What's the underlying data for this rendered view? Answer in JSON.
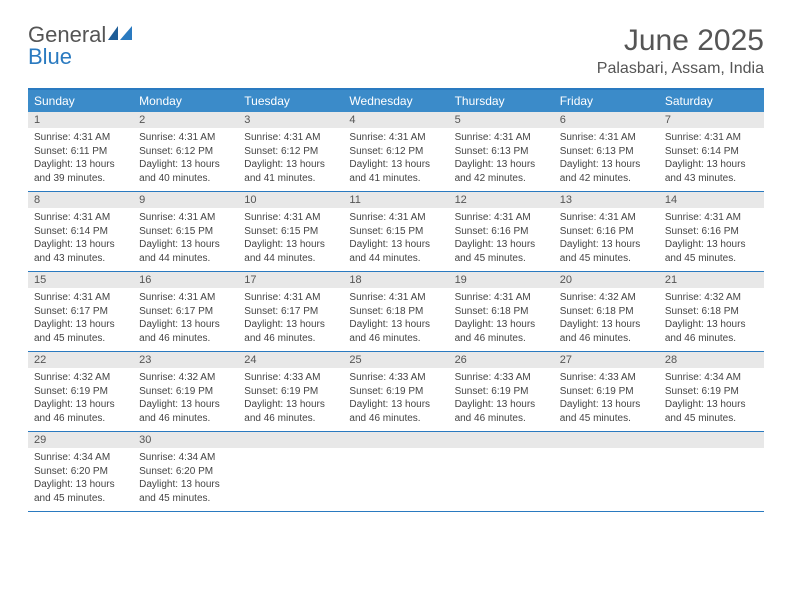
{
  "logo": {
    "text1": "General",
    "text2": "Blue"
  },
  "title": "June 2025",
  "location": "Palasbari, Assam, India",
  "colors": {
    "header_bg": "#3b8bc9",
    "border": "#2a7ac0",
    "daynum_bg": "#e8e8e8",
    "text_dark": "#555555",
    "text_body": "#444444",
    "white": "#ffffff"
  },
  "dayNames": [
    "Sunday",
    "Monday",
    "Tuesday",
    "Wednesday",
    "Thursday",
    "Friday",
    "Saturday"
  ],
  "weeks": [
    [
      {
        "num": "1",
        "sunrise": "Sunrise: 4:31 AM",
        "sunset": "Sunset: 6:11 PM",
        "day1": "Daylight: 13 hours",
        "day2": "and 39 minutes."
      },
      {
        "num": "2",
        "sunrise": "Sunrise: 4:31 AM",
        "sunset": "Sunset: 6:12 PM",
        "day1": "Daylight: 13 hours",
        "day2": "and 40 minutes."
      },
      {
        "num": "3",
        "sunrise": "Sunrise: 4:31 AM",
        "sunset": "Sunset: 6:12 PM",
        "day1": "Daylight: 13 hours",
        "day2": "and 41 minutes."
      },
      {
        "num": "4",
        "sunrise": "Sunrise: 4:31 AM",
        "sunset": "Sunset: 6:12 PM",
        "day1": "Daylight: 13 hours",
        "day2": "and 41 minutes."
      },
      {
        "num": "5",
        "sunrise": "Sunrise: 4:31 AM",
        "sunset": "Sunset: 6:13 PM",
        "day1": "Daylight: 13 hours",
        "day2": "and 42 minutes."
      },
      {
        "num": "6",
        "sunrise": "Sunrise: 4:31 AM",
        "sunset": "Sunset: 6:13 PM",
        "day1": "Daylight: 13 hours",
        "day2": "and 42 minutes."
      },
      {
        "num": "7",
        "sunrise": "Sunrise: 4:31 AM",
        "sunset": "Sunset: 6:14 PM",
        "day1": "Daylight: 13 hours",
        "day2": "and 43 minutes."
      }
    ],
    [
      {
        "num": "8",
        "sunrise": "Sunrise: 4:31 AM",
        "sunset": "Sunset: 6:14 PM",
        "day1": "Daylight: 13 hours",
        "day2": "and 43 minutes."
      },
      {
        "num": "9",
        "sunrise": "Sunrise: 4:31 AM",
        "sunset": "Sunset: 6:15 PM",
        "day1": "Daylight: 13 hours",
        "day2": "and 44 minutes."
      },
      {
        "num": "10",
        "sunrise": "Sunrise: 4:31 AM",
        "sunset": "Sunset: 6:15 PM",
        "day1": "Daylight: 13 hours",
        "day2": "and 44 minutes."
      },
      {
        "num": "11",
        "sunrise": "Sunrise: 4:31 AM",
        "sunset": "Sunset: 6:15 PM",
        "day1": "Daylight: 13 hours",
        "day2": "and 44 minutes."
      },
      {
        "num": "12",
        "sunrise": "Sunrise: 4:31 AM",
        "sunset": "Sunset: 6:16 PM",
        "day1": "Daylight: 13 hours",
        "day2": "and 45 minutes."
      },
      {
        "num": "13",
        "sunrise": "Sunrise: 4:31 AM",
        "sunset": "Sunset: 6:16 PM",
        "day1": "Daylight: 13 hours",
        "day2": "and 45 minutes."
      },
      {
        "num": "14",
        "sunrise": "Sunrise: 4:31 AM",
        "sunset": "Sunset: 6:16 PM",
        "day1": "Daylight: 13 hours",
        "day2": "and 45 minutes."
      }
    ],
    [
      {
        "num": "15",
        "sunrise": "Sunrise: 4:31 AM",
        "sunset": "Sunset: 6:17 PM",
        "day1": "Daylight: 13 hours",
        "day2": "and 45 minutes."
      },
      {
        "num": "16",
        "sunrise": "Sunrise: 4:31 AM",
        "sunset": "Sunset: 6:17 PM",
        "day1": "Daylight: 13 hours",
        "day2": "and 46 minutes."
      },
      {
        "num": "17",
        "sunrise": "Sunrise: 4:31 AM",
        "sunset": "Sunset: 6:17 PM",
        "day1": "Daylight: 13 hours",
        "day2": "and 46 minutes."
      },
      {
        "num": "18",
        "sunrise": "Sunrise: 4:31 AM",
        "sunset": "Sunset: 6:18 PM",
        "day1": "Daylight: 13 hours",
        "day2": "and 46 minutes."
      },
      {
        "num": "19",
        "sunrise": "Sunrise: 4:31 AM",
        "sunset": "Sunset: 6:18 PM",
        "day1": "Daylight: 13 hours",
        "day2": "and 46 minutes."
      },
      {
        "num": "20",
        "sunrise": "Sunrise: 4:32 AM",
        "sunset": "Sunset: 6:18 PM",
        "day1": "Daylight: 13 hours",
        "day2": "and 46 minutes."
      },
      {
        "num": "21",
        "sunrise": "Sunrise: 4:32 AM",
        "sunset": "Sunset: 6:18 PM",
        "day1": "Daylight: 13 hours",
        "day2": "and 46 minutes."
      }
    ],
    [
      {
        "num": "22",
        "sunrise": "Sunrise: 4:32 AM",
        "sunset": "Sunset: 6:19 PM",
        "day1": "Daylight: 13 hours",
        "day2": "and 46 minutes."
      },
      {
        "num": "23",
        "sunrise": "Sunrise: 4:32 AM",
        "sunset": "Sunset: 6:19 PM",
        "day1": "Daylight: 13 hours",
        "day2": "and 46 minutes."
      },
      {
        "num": "24",
        "sunrise": "Sunrise: 4:33 AM",
        "sunset": "Sunset: 6:19 PM",
        "day1": "Daylight: 13 hours",
        "day2": "and 46 minutes."
      },
      {
        "num": "25",
        "sunrise": "Sunrise: 4:33 AM",
        "sunset": "Sunset: 6:19 PM",
        "day1": "Daylight: 13 hours",
        "day2": "and 46 minutes."
      },
      {
        "num": "26",
        "sunrise": "Sunrise: 4:33 AM",
        "sunset": "Sunset: 6:19 PM",
        "day1": "Daylight: 13 hours",
        "day2": "and 46 minutes."
      },
      {
        "num": "27",
        "sunrise": "Sunrise: 4:33 AM",
        "sunset": "Sunset: 6:19 PM",
        "day1": "Daylight: 13 hours",
        "day2": "and 45 minutes."
      },
      {
        "num": "28",
        "sunrise": "Sunrise: 4:34 AM",
        "sunset": "Sunset: 6:19 PM",
        "day1": "Daylight: 13 hours",
        "day2": "and 45 minutes."
      }
    ],
    [
      {
        "num": "29",
        "sunrise": "Sunrise: 4:34 AM",
        "sunset": "Sunset: 6:20 PM",
        "day1": "Daylight: 13 hours",
        "day2": "and 45 minutes."
      },
      {
        "num": "30",
        "sunrise": "Sunrise: 4:34 AM",
        "sunset": "Sunset: 6:20 PM",
        "day1": "Daylight: 13 hours",
        "day2": "and 45 minutes."
      },
      null,
      null,
      null,
      null,
      null
    ]
  ]
}
